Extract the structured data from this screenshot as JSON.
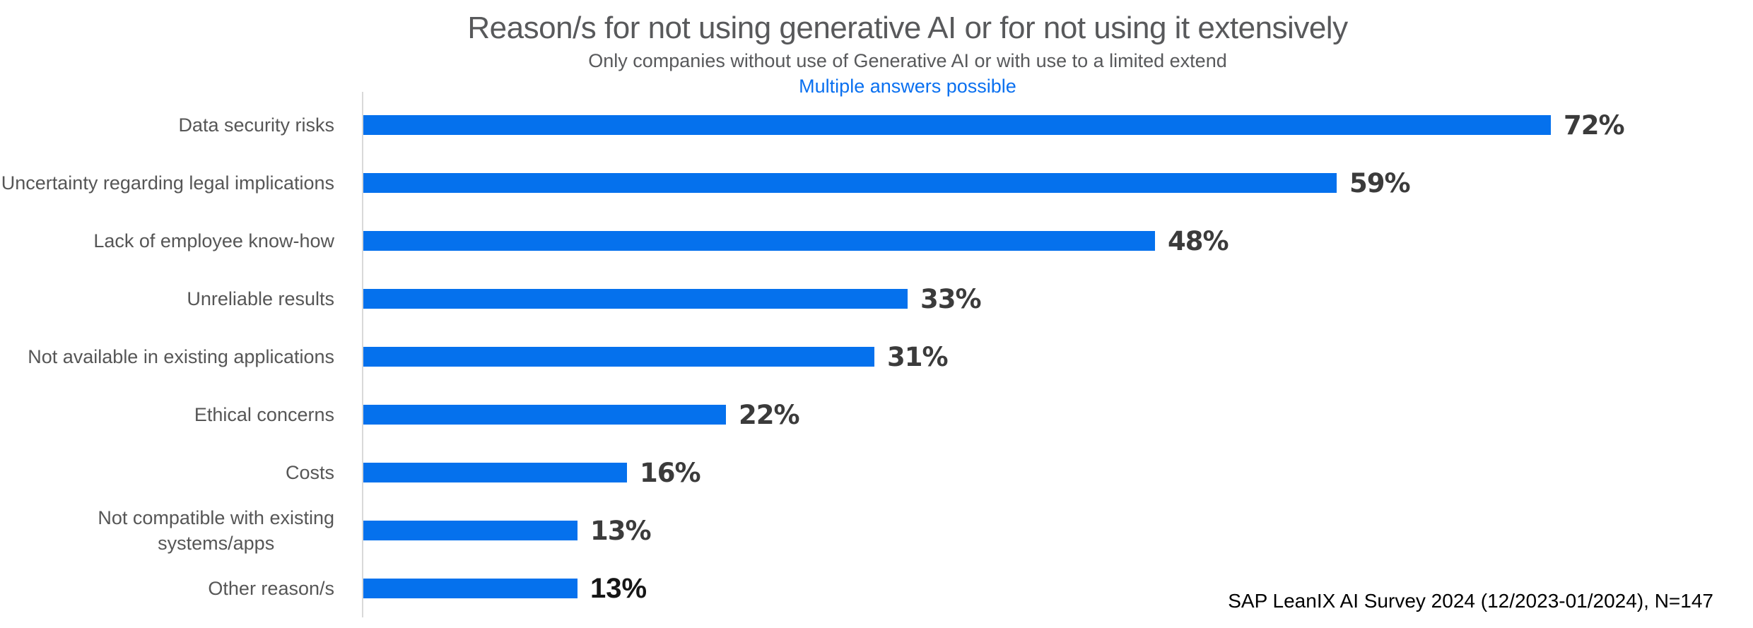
{
  "header": {
    "title": "Reason/s for not using generative AI or for not using it extensively",
    "subtitle": "Only companies without use of Generative AI or with use to a limited extend",
    "note": "Multiple answers possible"
  },
  "footer": {
    "source": "SAP LeanIX AI Survey 2024 (12/2023-01/2024), N=147"
  },
  "colors": {
    "bar_blue": "#0571ED",
    "note_blue": "#0A70F0",
    "title_gray": "#58595B",
    "category_label_gray": "#565656",
    "value_label_gray": "#3B3B3B",
    "axis_line_gray": "#D9D9D9",
    "background": "#FFFFFF"
  },
  "chart_data": {
    "type": "bar",
    "orientation": "horizontal",
    "title": "Reason/s for not using generative AI or for not using it extensively",
    "subtitle": "Only companies without use of Generative AI or with use to a limited extend",
    "annotation": "Multiple answers possible",
    "source": "SAP LeanIX AI Survey 2024 (12/2023-01/2024), N=147",
    "categories": [
      "Data security risks",
      "Uncertainty regarding legal implications",
      "Lack of employee know-how",
      "Unreliable results",
      "Not available in existing applications",
      "Ethical concerns",
      "Costs",
      "Not compatible with existing\nsystems/apps",
      "Other reason/s"
    ],
    "values": [
      72,
      59,
      48,
      33,
      31,
      22,
      16,
      13,
      13
    ],
    "value_suffix": "%",
    "value_labels_shown": true,
    "xlim": [
      0,
      84
    ],
    "grid": false,
    "legend": "none",
    "bar_color": "#0571ED"
  }
}
